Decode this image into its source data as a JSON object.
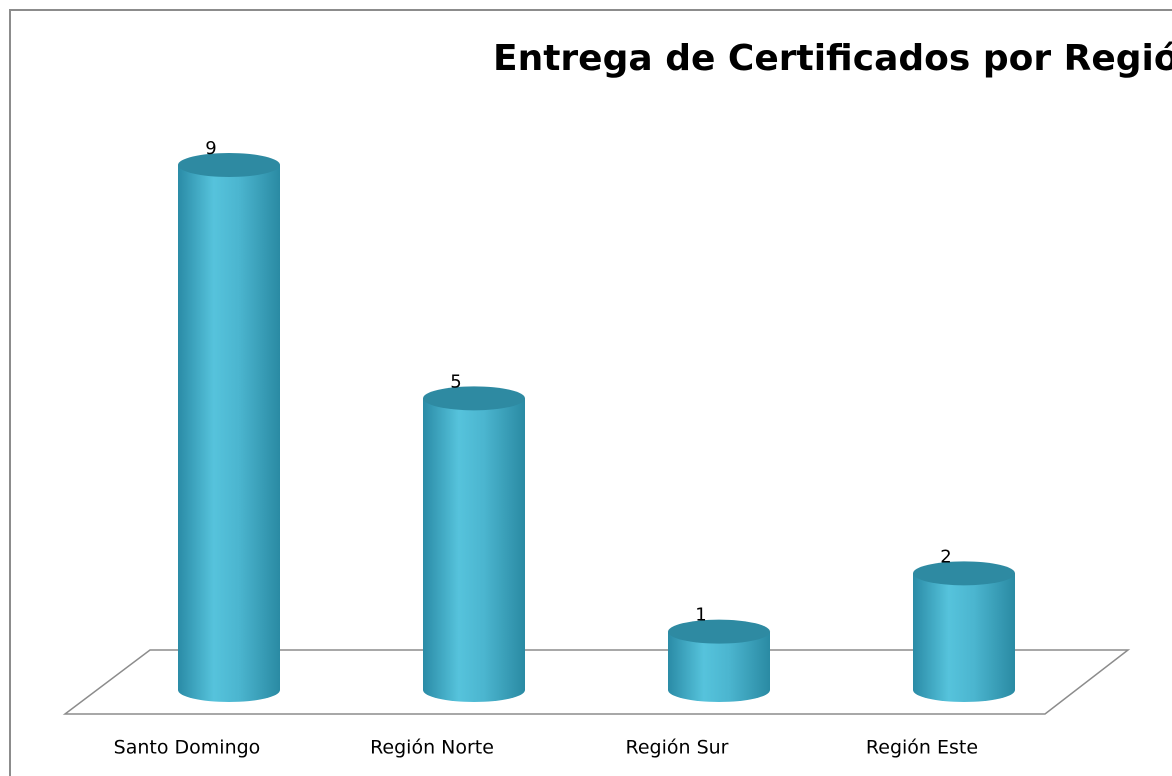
{
  "chart_data": {
    "type": "bar",
    "title": "Entrega de Certificados por Región",
    "categories": [
      "Santo Domingo",
      "Región Norte",
      "Región Sur",
      "Región Este"
    ],
    "values": [
      9,
      5,
      1,
      2
    ],
    "color": "#4bb5cf"
  }
}
